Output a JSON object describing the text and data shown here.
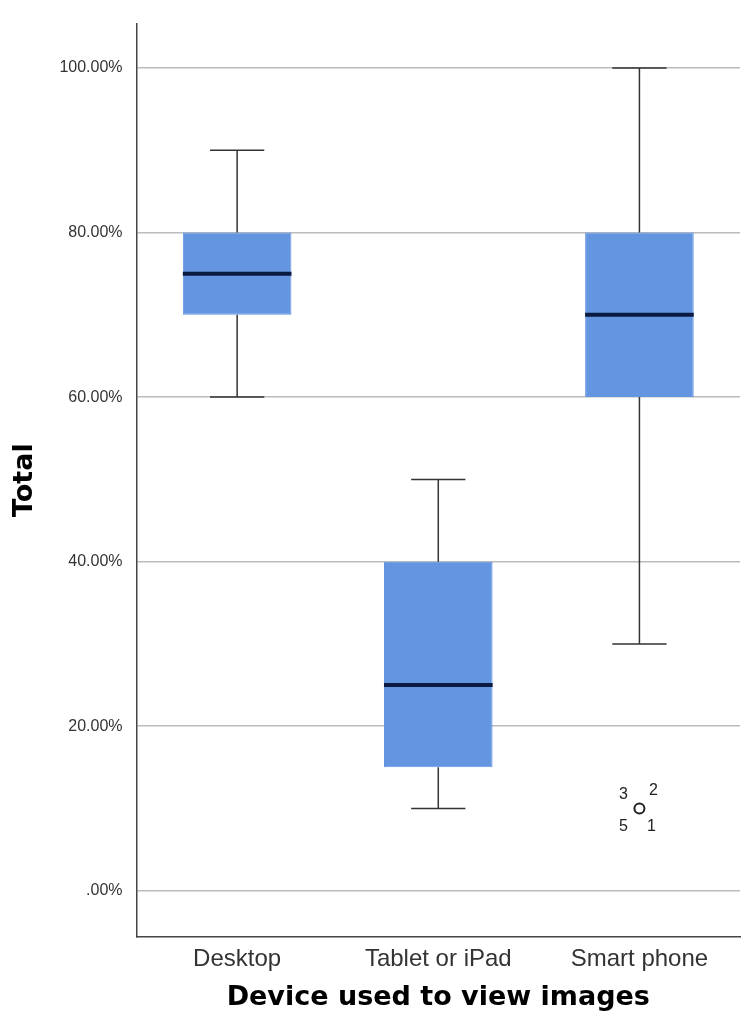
{
  "chart_data": {
    "type": "box",
    "xlabel": "Device used to view images",
    "ylabel": "Total",
    "categories": [
      "Desktop",
      "Tablet or iPad",
      "Smart phone"
    ],
    "color": "#6395e0",
    "boxes": [
      {
        "low": 60,
        "q1": 70,
        "median": 75,
        "q3": 80,
        "high": 90
      },
      {
        "low": 10,
        "q1": 15,
        "median": 25,
        "q3": 40,
        "high": 50
      },
      {
        "low": 30,
        "q1": 60,
        "median": 70,
        "q3": 80,
        "high": 100,
        "outliers": [
          10
        ]
      }
    ],
    "ylim": [
      -5.6,
      105.4
    ],
    "yticks": [
      {
        "value": 0,
        "label": ".00%"
      },
      {
        "value": 20,
        "label": "20.00%"
      },
      {
        "value": 40,
        "label": "40.00%"
      },
      {
        "value": 60,
        "label": "60.00%"
      },
      {
        "value": 80,
        "label": "80.00%"
      },
      {
        "value": 100,
        "label": "100.00%"
      }
    ],
    "grid": "y",
    "annotations": [
      "3",
      "2",
      "5",
      "1"
    ]
  }
}
